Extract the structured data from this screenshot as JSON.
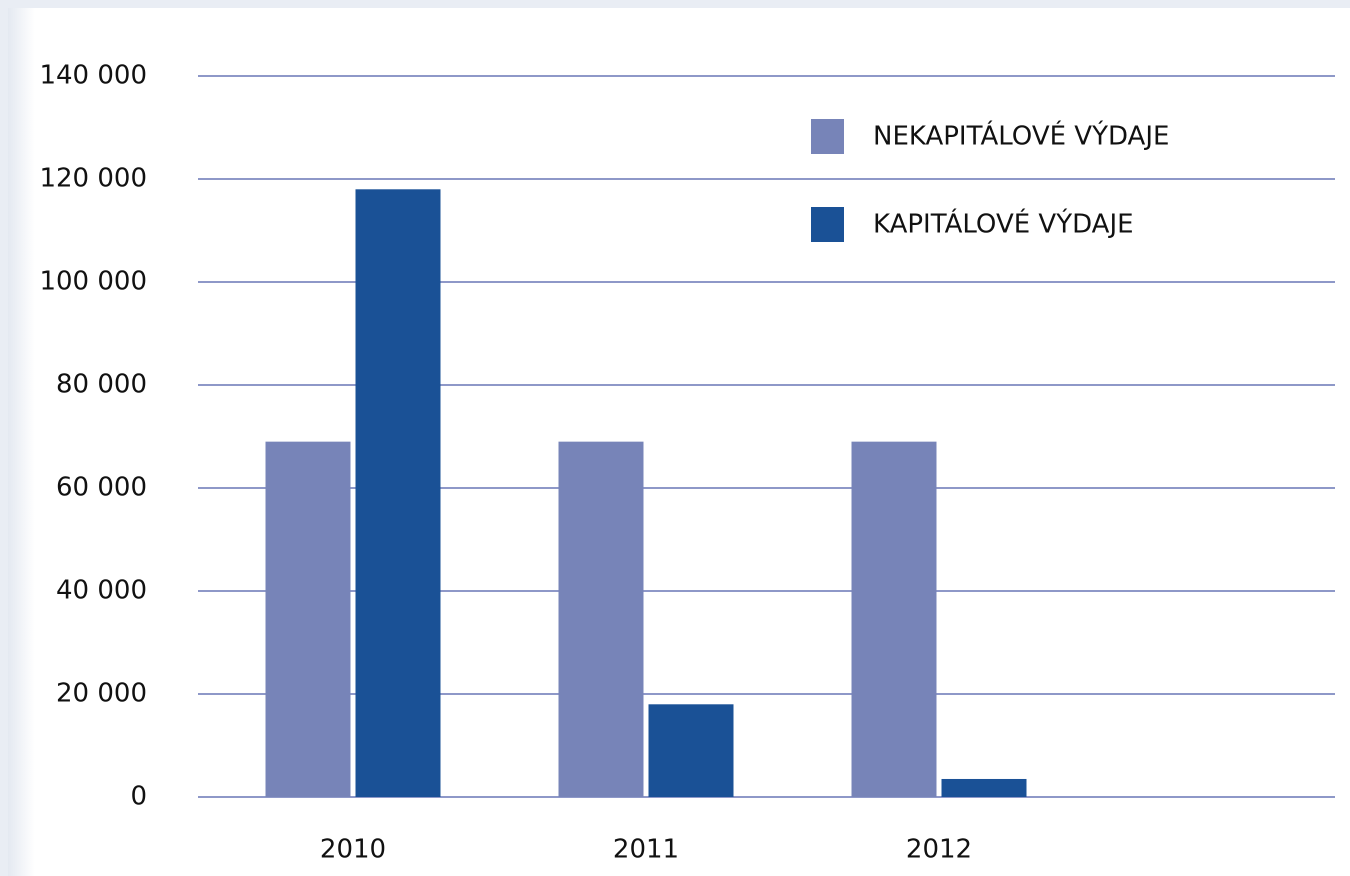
{
  "chart_data": {
    "type": "bar",
    "categories": [
      "2010",
      "2011",
      "2012"
    ],
    "series": [
      {
        "name": "NEKAPITÁLOVÉ VÝDAJE",
        "color": "#7784b8",
        "values": [
          69000,
          69000,
          69000
        ]
      },
      {
        "name": "KAPITÁLOVÉ VÝDAJE",
        "color": "#1a5196",
        "values": [
          118000,
          18000,
          3500
        ]
      }
    ],
    "ylim": [
      0,
      140000
    ],
    "yticks": [
      0,
      {
        "value": 20000,
        "label": "20 000"
      },
      {
        "value": 40000,
        "label": "40 000"
      },
      {
        "value": 60000,
        "label": "60 000"
      },
      {
        "value": 80000,
        "label": "80 000"
      },
      {
        "value": 100000,
        "label": "100 000"
      },
      {
        "value": 120000,
        "label": "120 000"
      },
      {
        "value": 140000,
        "label": "140 000"
      }
    ],
    "grid": true,
    "legend": "top-right"
  }
}
